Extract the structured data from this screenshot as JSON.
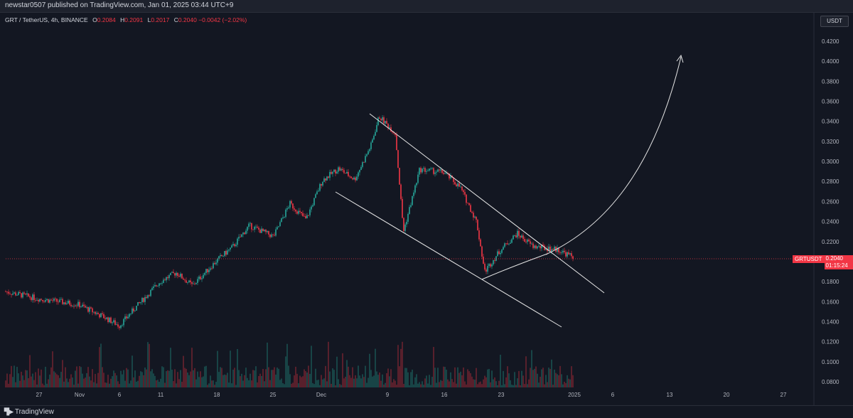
{
  "header": {
    "publish_text": "newstar0507 published on TradingView.com, Jan 01, 2025 03:44 UTC+9"
  },
  "legend": {
    "symbol": "GRT / TetherUS, 4h, BINANCE",
    "open_label": "O",
    "open": "0.2084",
    "high_label": "H",
    "high": "0.2091",
    "low_label": "L",
    "low": "0.2017",
    "close_label": "C",
    "close": "0.2040",
    "change": "−0.0042 (−2.02%)"
  },
  "price_axis": {
    "currency": "USDT",
    "ticks": [
      "0.4200",
      "0.4000",
      "0.3800",
      "0.3600",
      "0.3400",
      "0.3200",
      "0.3000",
      "0.2800",
      "0.2600",
      "0.2400",
      "0.2200",
      "0.1800",
      "0.1600",
      "0.1400",
      "0.1200",
      "0.1000",
      "0.0800"
    ]
  },
  "price_tag": {
    "symbol": "GRTUSDT",
    "price": "0.2040",
    "countdown": "01:15:24"
  },
  "time_axis": {
    "ticks": [
      "27",
      "Nov",
      "6",
      "11",
      "18",
      "25",
      "Dec",
      "9",
      "16",
      "23",
      "2025",
      "6",
      "13",
      "20",
      "27"
    ]
  },
  "branding": {
    "logo_text": "TradingView"
  },
  "colors": {
    "up": "#26a69a",
    "down": "#f23645",
    "background": "#131722",
    "drawing": "#e6e6e6"
  },
  "chart_data": {
    "type": "candlestick",
    "symbol": "GRT / TetherUS",
    "timeframe": "4h",
    "ylim": [
      0.08,
      0.43
    ],
    "path_x": [
      "Oct 23",
      "Oct 27",
      "Nov 1",
      "Nov 4",
      "Nov 6",
      "Nov 8",
      "Nov 11",
      "Nov 13",
      "Nov 15",
      "Nov 18",
      "Nov 20",
      "Nov 22",
      "Nov 25",
      "Nov 27",
      "Nov 29",
      "Dec 1",
      "Dec 3",
      "Dec 5",
      "Dec 7",
      "Dec 8",
      "Dec 10",
      "Dec 11",
      "Dec 13",
      "Dec 16",
      "Dec 18",
      "Dec 20",
      "Dec 21",
      "Dec 23",
      "Dec 25",
      "Dec 27",
      "Dec 30",
      "Jan 1"
    ],
    "path_close": [
      0.17,
      0.163,
      0.157,
      0.145,
      0.136,
      0.154,
      0.18,
      0.189,
      0.176,
      0.201,
      0.215,
      0.236,
      0.225,
      0.258,
      0.242,
      0.281,
      0.293,
      0.282,
      0.316,
      0.345,
      0.328,
      0.23,
      0.292,
      0.289,
      0.274,
      0.24,
      0.19,
      0.212,
      0.228,
      0.215,
      0.212,
      0.204
    ],
    "annotations": [
      "descending channel",
      "rounded bottom",
      "breakout arrow toward 0.4000"
    ]
  }
}
